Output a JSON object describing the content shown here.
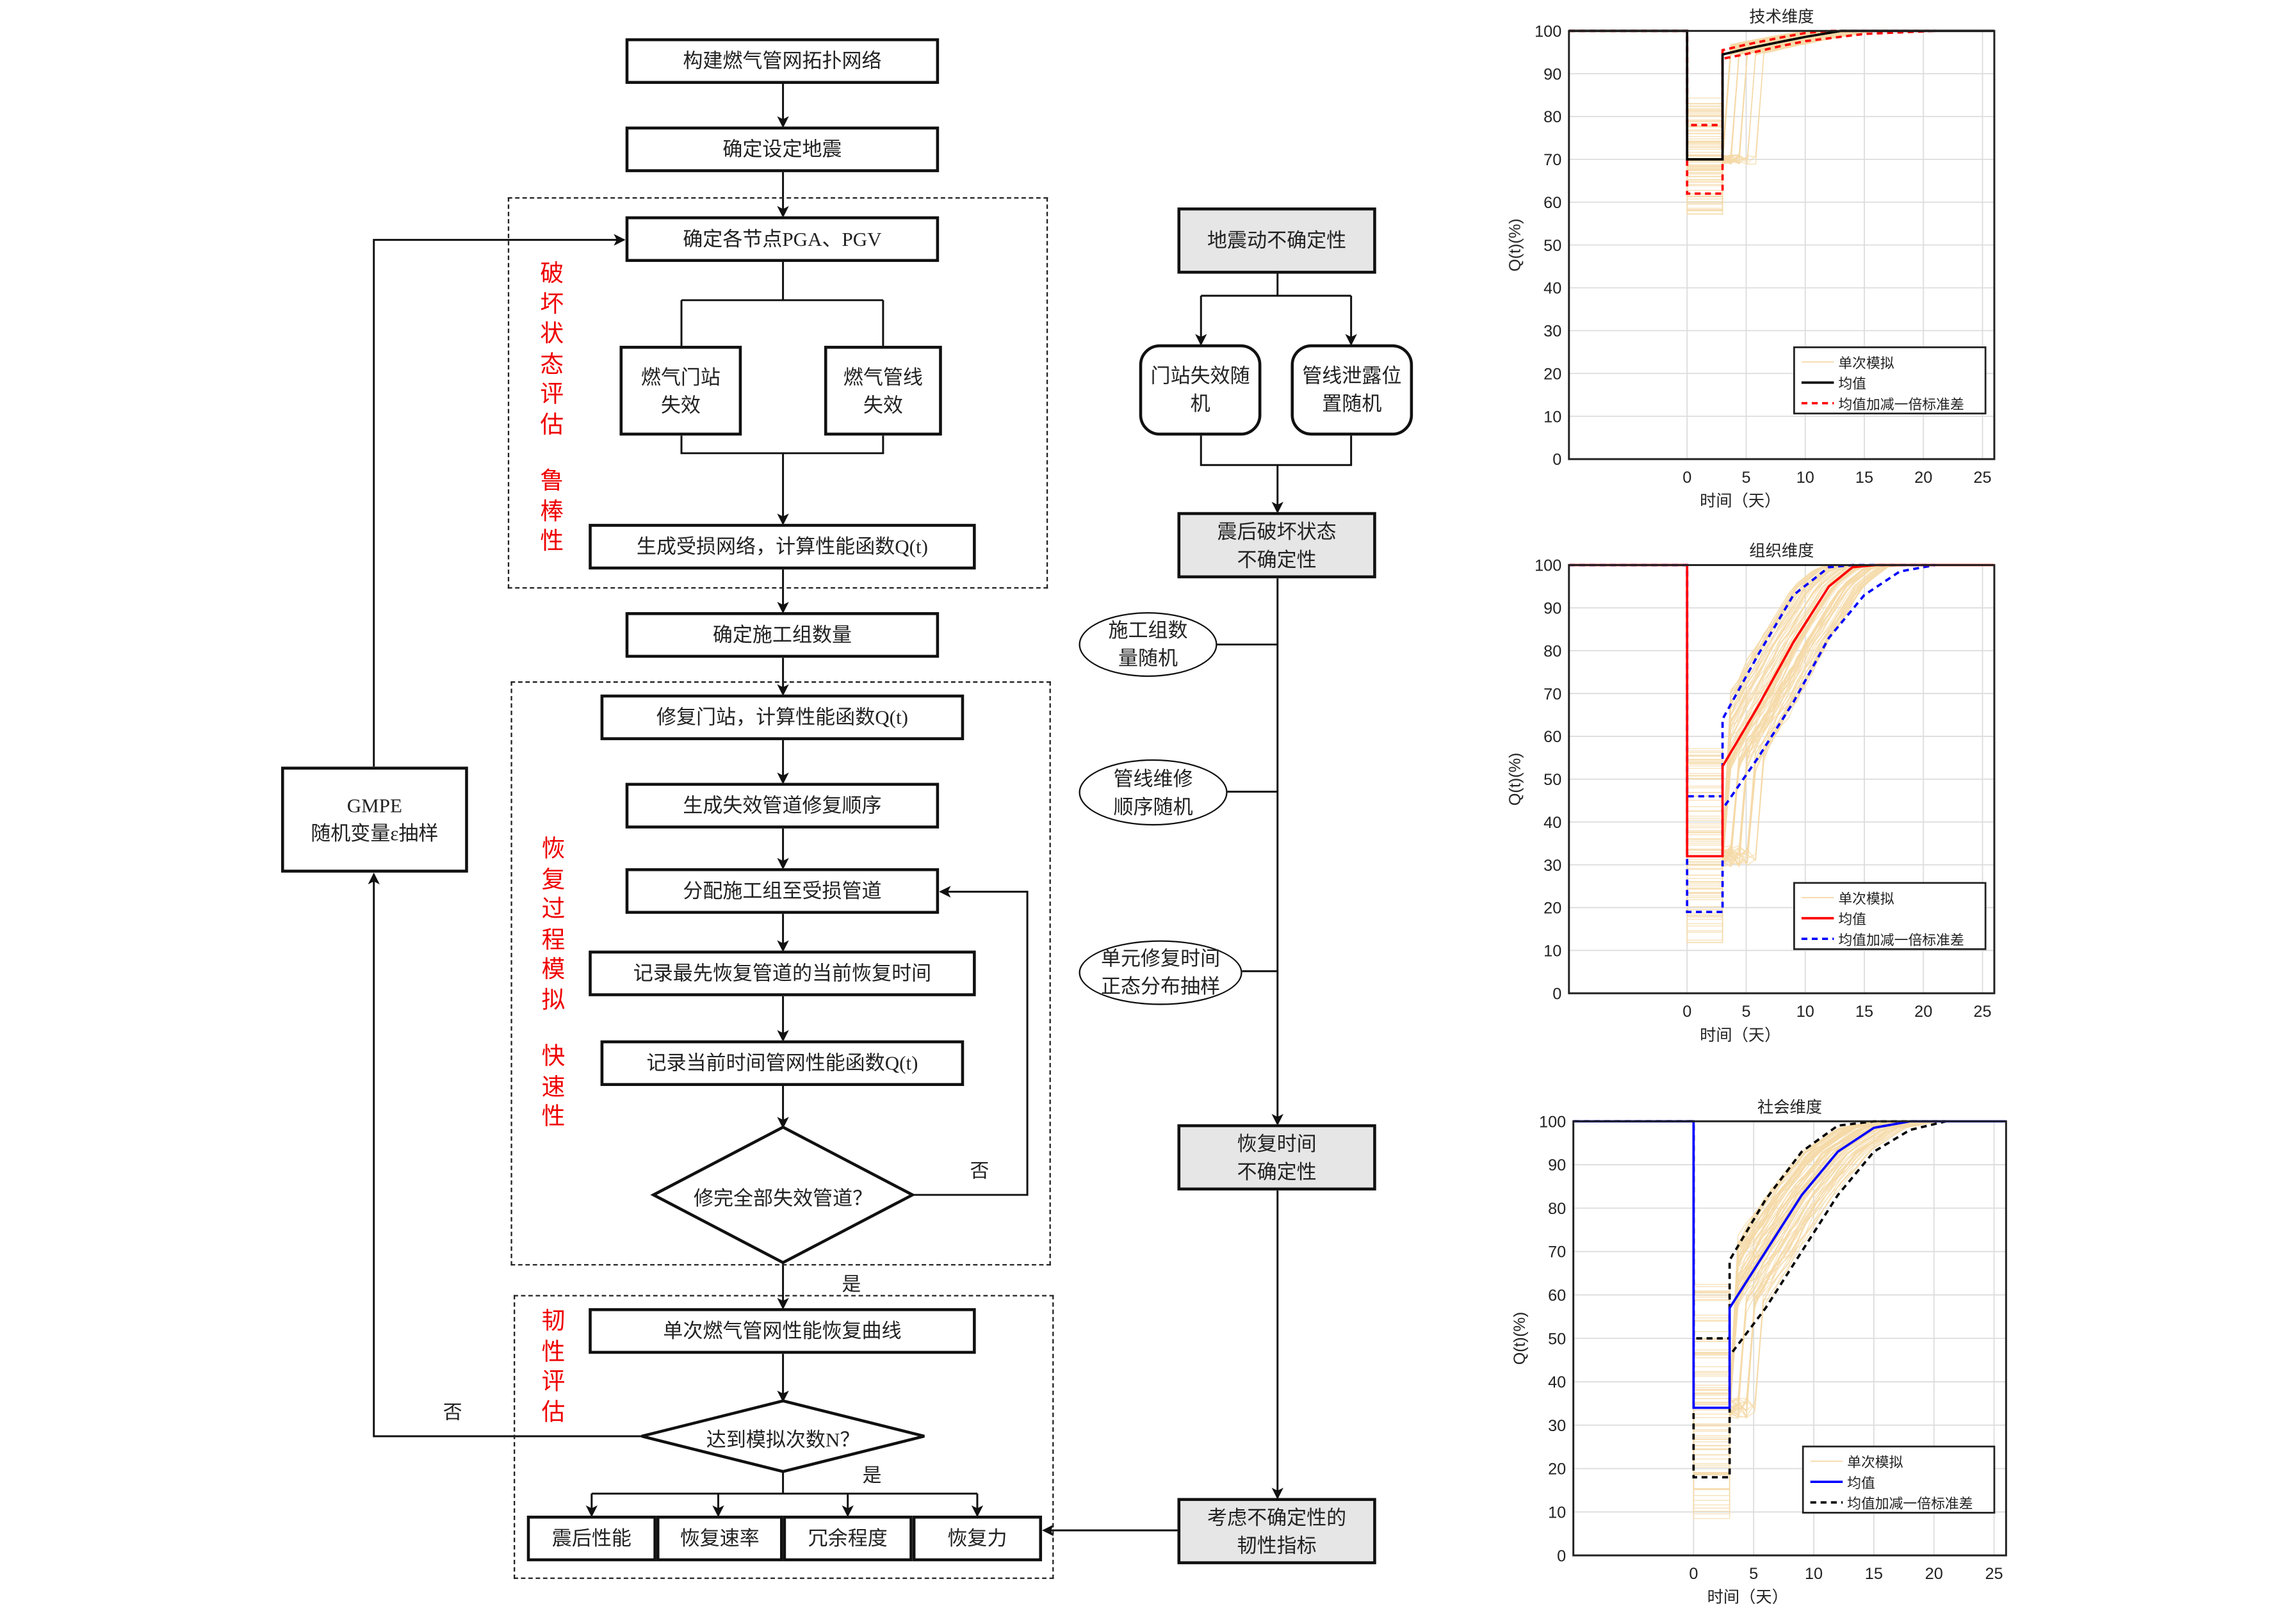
{
  "flow": {
    "build_network": "构建燃气管网拓扑网络",
    "set_earthquake": "确定设定地震",
    "node_pga_pgv": "确定各节点PGA、PGV",
    "gate_station_fail": "燃气门站失效",
    "pipeline_fail": "燃气管线失效",
    "damaged_network": "生成受损网络，计算性能函数Q(t)",
    "crew_count": "确定施工组数量",
    "repair_station": "修复门站，计算性能函数Q(t)",
    "repair_order": "生成失效管道修复顺序",
    "assign_crews": "分配施工组至受损管道",
    "record_time": "记录最先恢复管道的当前恢复时间",
    "record_q": "记录当前时间管网性能函数Q(t)",
    "all_repaired": "修完全部失效管道？",
    "single_curve": "单次燃气管网性能恢复曲线",
    "reach_n": "达到模拟次数N？",
    "yes1": "是",
    "yes2": "是",
    "no1": "否",
    "no2": "否",
    "gmpe_line1": "GMPE",
    "gmpe_line2": "随机变量ε抽样",
    "metrics": [
      "震后性能",
      "恢复速率",
      "冗余程度",
      "恢复力"
    ],
    "section_damage": [
      "破",
      "坏",
      "状",
      "态",
      "评",
      "估"
    ],
    "section_robust": [
      "鲁",
      "棒",
      "性"
    ],
    "section_recovery": [
      "恢",
      "复",
      "过",
      "程",
      "模",
      "拟"
    ],
    "section_rapid": [
      "快",
      "速",
      "性"
    ],
    "section_resilience": [
      "韧",
      "性",
      "评",
      "估"
    ]
  },
  "uncertainty": {
    "ground_motion": "地震动不确定性",
    "station_random": "门站失效随机",
    "leak_random": "管线泄露位置随机",
    "damage_state": "震后破坏状态不确定性",
    "crew_random": "施工组数量随机",
    "order_random": "管线维修顺序随机",
    "repair_time_sampling": "单元修复时间正态分布抽样",
    "recovery_time": "恢复时间不确定性",
    "resilience_index": "考虑不确定性的韧性指标"
  },
  "chart_data": [
    {
      "type": "line",
      "title": "技术维度",
      "xlabel": "时间（天）",
      "ylabel": "Q(t)(%)",
      "xticks": [
        0,
        5,
        10,
        15,
        20,
        25
      ],
      "yticks": [
        0,
        10,
        20,
        30,
        40,
        50,
        60,
        70,
        80,
        90,
        100
      ],
      "xlim": [
        -10,
        26
      ],
      "ylim": [
        0,
        100
      ],
      "grid": true,
      "legend_position": "bottom-right",
      "legend": [
        "单次模拟",
        "均值",
        "均值加减一倍标准差"
      ],
      "colors": {
        "single": "#f5d9a8",
        "mean": "#000000",
        "band": "#ff0000"
      },
      "mean": {
        "x": [
          -10,
          0,
          0,
          3,
          3,
          5,
          8,
          10,
          13,
          26
        ],
        "y": [
          100,
          100,
          70,
          70,
          94.5,
          95.8,
          97.5,
          98.6,
          100,
          100
        ]
      },
      "upper": {
        "x": [
          -10,
          0,
          0,
          3,
          3,
          5,
          8,
          10,
          12,
          21
        ],
        "y": [
          100,
          100,
          78,
          78,
          95.5,
          96.8,
          98.5,
          99.5,
          100,
          100
        ]
      },
      "lower": {
        "x": [
          -10,
          0,
          0,
          3,
          3,
          5,
          8,
          10,
          15,
          21
        ],
        "y": [
          100,
          100,
          62,
          62,
          93.5,
          94.6,
          96.5,
          97.6,
          99.3,
          100
        ]
      }
    },
    {
      "type": "line",
      "title": "组织维度",
      "xlabel": "时间（天）",
      "ylabel": "Q(t)(%)",
      "xticks": [
        0,
        5,
        10,
        15,
        20,
        25
      ],
      "yticks": [
        0,
        10,
        20,
        30,
        40,
        50,
        60,
        70,
        80,
        90,
        100
      ],
      "xlim": [
        -10,
        26
      ],
      "ylim": [
        0,
        100
      ],
      "grid": true,
      "legend_position": "bottom-right",
      "legend": [
        "单次模拟",
        "均值",
        "均值加减一倍标准差"
      ],
      "colors": {
        "single": "#f5d9a8",
        "mean": "#ff0000",
        "band": "#0000ff"
      },
      "mean": {
        "x": [
          -10,
          0,
          0,
          3,
          3,
          6,
          9,
          12,
          14,
          16,
          26
        ],
        "y": [
          100,
          100,
          32,
          32,
          53,
          67,
          82,
          95,
          99.5,
          100,
          100
        ]
      },
      "upper": {
        "x": [
          -10,
          0,
          0,
          3,
          3,
          6,
          9,
          12,
          14,
          16,
          21
        ],
        "y": [
          100,
          100,
          46,
          46,
          64,
          79,
          93,
          99.5,
          100,
          100,
          100
        ]
      },
      "lower": {
        "x": [
          -10,
          0,
          0,
          3,
          3,
          6,
          9,
          12,
          15,
          18,
          21
        ],
        "y": [
          100,
          100,
          19,
          19,
          43,
          55,
          68,
          83,
          93,
          98.5,
          100
        ]
      }
    },
    {
      "type": "line",
      "title": "社会维度",
      "xlabel": "时间（天）",
      "ylabel": "Q(t)(%)",
      "xticks": [
        0,
        5,
        10,
        15,
        20,
        25
      ],
      "yticks": [
        0,
        10,
        20,
        30,
        40,
        50,
        60,
        70,
        80,
        90,
        100
      ],
      "xlim": [
        -10,
        26
      ],
      "ylim": [
        0,
        100
      ],
      "grid": true,
      "legend_position": "bottom-right",
      "legend": [
        "单次模拟",
        "均值",
        "均值加减一倍标准差"
      ],
      "colors": {
        "single": "#f5d9a8",
        "mean": "#0000ff",
        "band": "#000000"
      },
      "mean": {
        "x": [
          -10,
          0,
          0,
          3,
          3,
          6,
          9,
          12,
          15,
          18,
          26
        ],
        "y": [
          100,
          100,
          34,
          34,
          57,
          70,
          83,
          93,
          98.5,
          100,
          100
        ]
      },
      "upper": {
        "x": [
          -10,
          0,
          0,
          3,
          3,
          6,
          9,
          12,
          15,
          18,
          21
        ],
        "y": [
          100,
          100,
          50,
          50,
          68,
          82,
          93,
          99,
          100,
          100,
          100
        ]
      },
      "lower": {
        "x": [
          -10,
          0,
          0,
          3,
          3,
          6,
          9,
          12,
          15,
          18,
          21
        ],
        "y": [
          100,
          100,
          18,
          18,
          46,
          57,
          70,
          83,
          93,
          98,
          100
        ]
      }
    }
  ]
}
